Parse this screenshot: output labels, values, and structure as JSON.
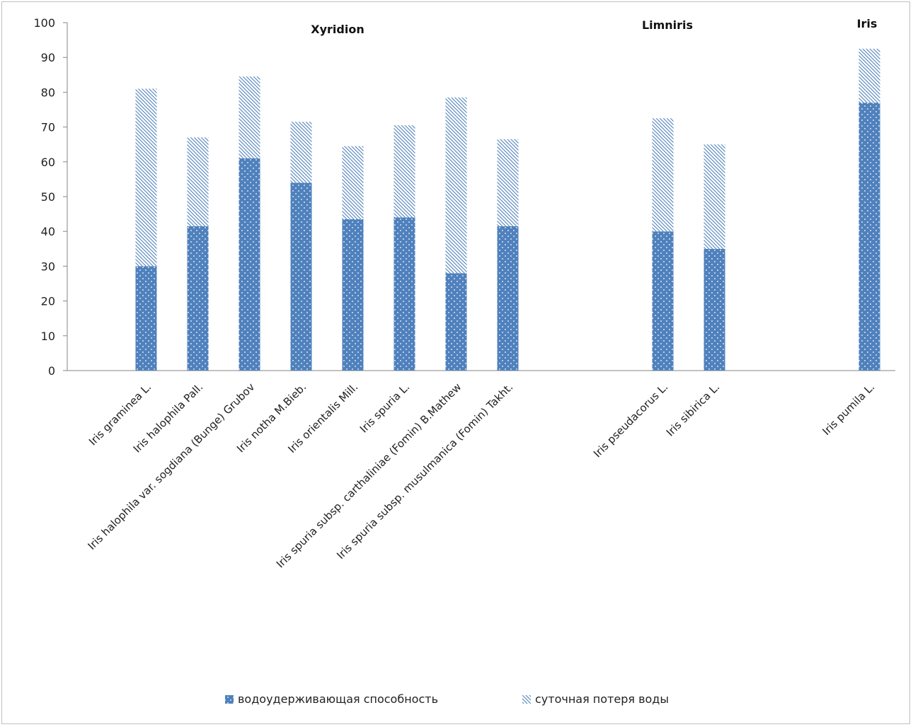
{
  "chart_data": {
    "type": "bar",
    "stacked": true,
    "title": "",
    "xlabel": "",
    "ylabel": "",
    "ylim": [
      0,
      100
    ],
    "yticks": [
      0,
      10,
      20,
      30,
      40,
      50,
      60,
      70,
      80,
      90,
      100
    ],
    "grid": false,
    "legend_position": "bottom",
    "groups": [
      {
        "label": "Xyridion",
        "categories": [
          "Iris graminea L.",
          "Iris halophila Pall.",
          "Iris halophila var. sogdiana (Bunge) Grubov",
          "Iris notha M.Bieb.",
          "Iris orientalis Mill.",
          "Iris spuria L.",
          "Iris spuria subsp. carthaliniae (Fomin) B.Mathew",
          "Iris spuria subsp. musulmanica (Fomin) Takht."
        ]
      },
      {
        "label": "Limniris",
        "categories": [
          "Iris pseudacorus L.",
          "Iris sibirica L."
        ]
      },
      {
        "label": "Iris",
        "categories": [
          "Iris pumila L."
        ]
      }
    ],
    "series": [
      {
        "name": "водоудерживающая  способность",
        "color": "#4f81bd",
        "pattern": "dots",
        "values": [
          30,
          41.5,
          61,
          54,
          43.5,
          44,
          28,
          41.5,
          40,
          35,
          77
        ]
      },
      {
        "name": "суточная потеря воды",
        "color": "#4f81bd",
        "pattern": "diagonal-hatch",
        "values": [
          51,
          25.5,
          23.5,
          17.5,
          21,
          26.5,
          50.5,
          25,
          32.5,
          30,
          15.5
        ]
      }
    ]
  }
}
